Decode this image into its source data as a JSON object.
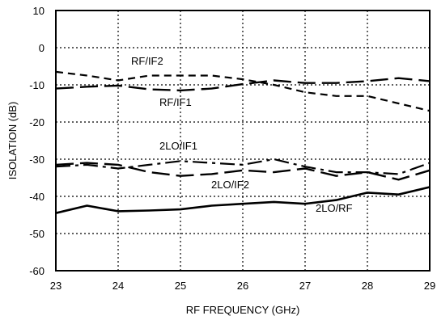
{
  "chart_data": {
    "type": "line",
    "title": "",
    "xlabel": "RF FREQUENCY (GHz)",
    "ylabel": "ISOLATION (dB)",
    "xlim": [
      23,
      29
    ],
    "ylim": [
      -60,
      10
    ],
    "xticks": [
      "23",
      "24",
      "25",
      "26",
      "27",
      "28",
      "29"
    ],
    "yticks": [
      "10",
      "0",
      "-10",
      "-20",
      "-30",
      "-40",
      "-50",
      "-60"
    ],
    "grid": true,
    "series": [
      {
        "name": "RF/IF2",
        "style": "dashed",
        "x": [
          23,
          23.5,
          24,
          24.5,
          25,
          25.5,
          26,
          26.5,
          27,
          27.5,
          28,
          28.5,
          29
        ],
        "y": [
          -6.5,
          -7.5,
          -8.8,
          -7.5,
          -7.5,
          -7.5,
          -8.5,
          -10,
          -12,
          -13,
          -13,
          -15,
          -17
        ]
      },
      {
        "name": "RF/IF1",
        "style": "long-dash",
        "x": [
          23,
          23.5,
          24,
          24.5,
          25,
          25.5,
          26,
          26.5,
          27,
          27.5,
          28,
          28.5,
          29
        ],
        "y": [
          -11,
          -10.5,
          -10.2,
          -11.2,
          -11.5,
          -11,
          -9.8,
          -8.8,
          -9.5,
          -9.5,
          -9,
          -8.2,
          -9
        ]
      },
      {
        "name": "2LO/IF1",
        "style": "dash-dot",
        "x": [
          23,
          23.5,
          24,
          24.5,
          25,
          25.5,
          26,
          26.5,
          27,
          27.5,
          28,
          28.5,
          29
        ],
        "y": [
          -32,
          -31.5,
          -32.5,
          -31.5,
          -30.5,
          -31,
          -31.5,
          -30,
          -32,
          -33.5,
          -33.5,
          -34,
          -31
        ]
      },
      {
        "name": "2LO/IF2",
        "style": "long-dash",
        "x": [
          23,
          23.5,
          24,
          24.5,
          25,
          25.5,
          26,
          26.5,
          27,
          27.5,
          28,
          28.5,
          29
        ],
        "y": [
          -31.5,
          -31,
          -31.5,
          -33.5,
          -34.5,
          -34,
          -33,
          -33.5,
          -32.5,
          -34.5,
          -33.5,
          -35.5,
          -33
        ]
      },
      {
        "name": "2LO/RF",
        "style": "solid",
        "x": [
          23,
          23.5,
          24,
          24.5,
          25,
          25.5,
          26,
          26.5,
          27,
          27.5,
          28,
          28.5,
          29
        ],
        "y": [
          -44.5,
          -42.5,
          -44,
          -43.8,
          -43.5,
          -42.5,
          -42,
          -41.5,
          -42,
          -41,
          -39,
          -39.5,
          -37.5
        ]
      }
    ]
  }
}
